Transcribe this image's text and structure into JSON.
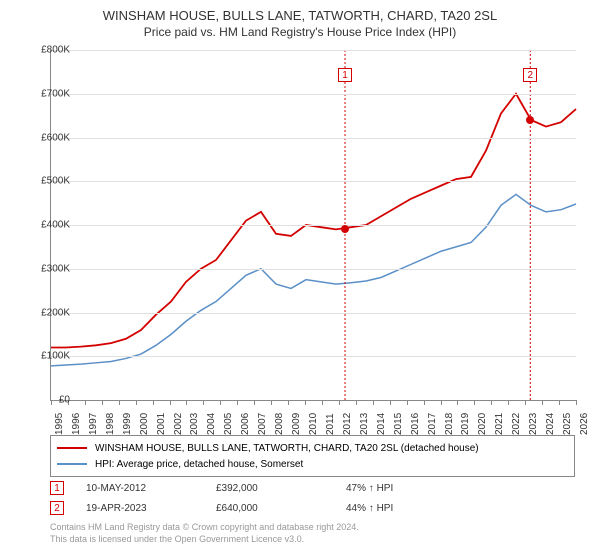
{
  "title": "WINSHAM HOUSE, BULLS LANE, TATWORTH, CHARD, TA20 2SL",
  "subtitle": "Price paid vs. HM Land Registry's House Price Index (HPI)",
  "chart": {
    "type": "line",
    "background_color": "#ffffff",
    "grid_color": "#e0e0e0",
    "axis_color": "#888888",
    "ylim": [
      0,
      800000
    ],
    "ytick_step": 100000,
    "y_labels": [
      "£0",
      "£100K",
      "£200K",
      "£300K",
      "£400K",
      "£500K",
      "£600K",
      "£700K",
      "£800K"
    ],
    "x_years": [
      1995,
      1996,
      1997,
      1998,
      1999,
      2000,
      2001,
      2002,
      2003,
      2004,
      2005,
      2006,
      2007,
      2008,
      2009,
      2010,
      2011,
      2012,
      2013,
      2014,
      2015,
      2016,
      2017,
      2018,
      2019,
      2020,
      2021,
      2022,
      2023,
      2024,
      2025,
      2026
    ],
    "series": [
      {
        "name": "WINSHAM HOUSE, BULLS LANE, TATWORTH, CHARD, TA20 2SL (detached house)",
        "color": "#d40000",
        "width": 1.8,
        "values": [
          120,
          120,
          122,
          125,
          130,
          140,
          160,
          195,
          225,
          270,
          300,
          320,
          365,
          410,
          430,
          380,
          375,
          400,
          395,
          390,
          395,
          400,
          420,
          440,
          460,
          475,
          490,
          505,
          510,
          570,
          655,
          700,
          640,
          625,
          635,
          665
        ]
      },
      {
        "name": "HPI: Average price, detached house, Somerset",
        "color": "#5b8fc7",
        "width": 1.5,
        "values": [
          78,
          80,
          82,
          85,
          88,
          95,
          105,
          125,
          150,
          180,
          205,
          225,
          255,
          285,
          300,
          265,
          255,
          275,
          270,
          265,
          268,
          272,
          280,
          295,
          310,
          325,
          340,
          350,
          360,
          395,
          445,
          470,
          445,
          430,
          435,
          448
        ]
      }
    ],
    "vlines": [
      {
        "year": 2012.36,
        "color": "#d40000"
      },
      {
        "year": 2023.3,
        "color": "#d40000"
      }
    ],
    "markers": [
      {
        "n": "1",
        "year": 2012.36,
        "value": 392,
        "color": "#d40000"
      },
      {
        "n": "2",
        "year": 2023.3,
        "value": 640,
        "color": "#d40000"
      }
    ]
  },
  "legend": {
    "items": [
      {
        "color": "#d40000",
        "label": "WINSHAM HOUSE, BULLS LANE, TATWORTH, CHARD, TA20 2SL (detached house)"
      },
      {
        "color": "#5b8fc7",
        "label": "HPI: Average price, detached house, Somerset"
      }
    ]
  },
  "transactions": [
    {
      "n": "1",
      "color": "#d40000",
      "date": "10-MAY-2012",
      "price": "£392,000",
      "pct": "47% ↑ HPI"
    },
    {
      "n": "2",
      "color": "#d40000",
      "date": "19-APR-2023",
      "price": "£640,000",
      "pct": "44% ↑ HPI"
    }
  ],
  "footer": {
    "line1": "Contains HM Land Registry data © Crown copyright and database right 2024.",
    "line2": "This data is licensed under the Open Government Licence v3.0."
  }
}
